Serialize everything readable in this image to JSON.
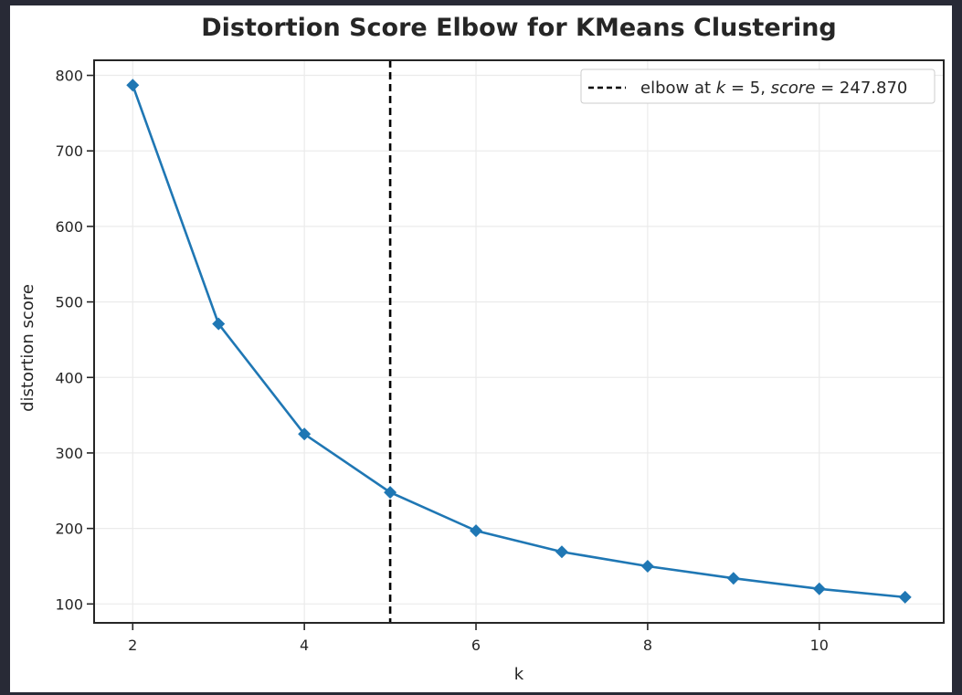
{
  "colors": {
    "page_background": "#282a36",
    "figure_background": "#ffffff",
    "series": "#1f77b4",
    "elbow_line": "#000000",
    "grid": "#ebebeb",
    "axes": "#262626"
  },
  "chart_data": {
    "type": "line",
    "title": "Distortion Score Elbow for KMeans Clustering",
    "xlabel": "k",
    "ylabel": "distortion score",
    "xlim": [
      1.55,
      11.45
    ],
    "ylim": [
      75,
      820
    ],
    "xticks": [
      2,
      4,
      6,
      8,
      10
    ],
    "yticks": [
      100,
      200,
      300,
      400,
      500,
      600,
      700,
      800
    ],
    "grid": true,
    "legend_position": "top-right",
    "marker": "diamond",
    "x": [
      2,
      3,
      4,
      5,
      6,
      7,
      8,
      9,
      10,
      11
    ],
    "series": [
      {
        "values": [
          787,
          471,
          325,
          247.87,
          197,
          169,
          150,
          134,
          120,
          109
        ]
      }
    ],
    "elbow": {
      "k": 5,
      "score": 247.87,
      "style": "dashed",
      "legend_prefix": "elbow at ",
      "k_symbol": "k",
      "k_eq": " = 5, ",
      "score_symbol": "score",
      "score_eq": " = 247.870"
    }
  }
}
